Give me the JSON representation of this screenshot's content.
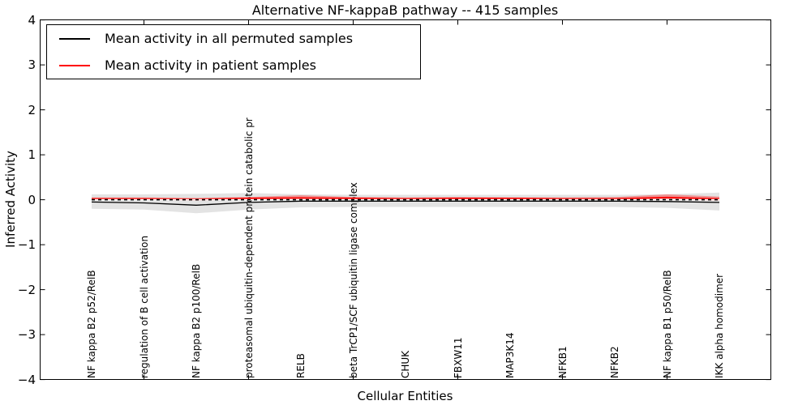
{
  "figure": {
    "title": "Alternative NF-kappaB pathway -- 415 samples",
    "xlabel": "Cellular Entities",
    "ylabel": "Inferred Activity"
  },
  "legend": {
    "items": [
      {
        "label": "Mean activity in all permuted samples",
        "color": "#000000"
      },
      {
        "label": "Mean activity in patient samples",
        "color": "#ff0000"
      }
    ]
  },
  "chart_data": {
    "type": "line",
    "title": "Alternative NF-kappaB pathway -- 415 samples",
    "xlabel": "Cellular Entities",
    "ylabel": "Inferred Activity",
    "ylim": [
      -4,
      4
    ],
    "yticks": [
      -4,
      -3,
      -2,
      -1,
      0,
      1,
      2,
      3,
      4
    ],
    "grid": false,
    "legend_position": "upper-left",
    "x_major_tick_indices": [
      1,
      3,
      5,
      7,
      9,
      11
    ],
    "categories": [
      "NF kappa B2 p52/RelB",
      "regulation of B cell activation",
      "NF kappa B2 p100/RelB",
      "proteasomal ubiquitin-dependent protein catabolic pr",
      "RELB",
      "beta TrCP1/SCF ubiquitin ligase complex",
      "CHUK",
      "FBXW11",
      "MAP3K14",
      "NFKB1",
      "NFKB2",
      "NF kappa B1 p50/RelB",
      "IKK alpha homodimer"
    ],
    "series": [
      {
        "name": "Mean activity in all permuted samples",
        "color": "#000000",
        "width": 1.3,
        "values": [
          -0.05,
          -0.07,
          -0.12,
          -0.06,
          -0.03,
          -0.03,
          -0.03,
          -0.03,
          -0.03,
          -0.03,
          -0.03,
          -0.04,
          -0.06
        ]
      },
      {
        "name": "Mean activity in patient samples",
        "color": "#ff0000",
        "width": 1.8,
        "values": [
          0.02,
          0.02,
          0.01,
          0.03,
          0.04,
          0.03,
          0.02,
          0.03,
          0.03,
          0.02,
          0.02,
          0.05,
          0.02
        ]
      }
    ],
    "bands": [
      {
        "name": "permuted-samples-range",
        "color": "#000000",
        "opacity": 0.11,
        "upper": [
          0.12,
          0.12,
          0.13,
          0.15,
          0.12,
          0.11,
          0.11,
          0.11,
          0.11,
          0.11,
          0.11,
          0.12,
          0.16
        ],
        "lower": [
          -0.2,
          -0.22,
          -0.3,
          -0.22,
          -0.17,
          -0.16,
          -0.16,
          -0.16,
          -0.16,
          -0.16,
          -0.16,
          -0.18,
          -0.24
        ]
      },
      {
        "name": "patient-samples-range",
        "color": "#ff0000",
        "opacity": 0.35,
        "upper": [
          0.05,
          0.05,
          0.04,
          0.06,
          0.1,
          0.06,
          0.05,
          0.06,
          0.05,
          0.05,
          0.06,
          0.12,
          0.07
        ],
        "lower": [
          -0.01,
          -0.01,
          -0.02,
          -0.01,
          0.0,
          0.0,
          -0.01,
          -0.01,
          -0.01,
          -0.01,
          -0.01,
          -0.01,
          -0.02
        ]
      }
    ],
    "zero_line": {
      "value": 0,
      "style": "dashed-black-white"
    }
  }
}
